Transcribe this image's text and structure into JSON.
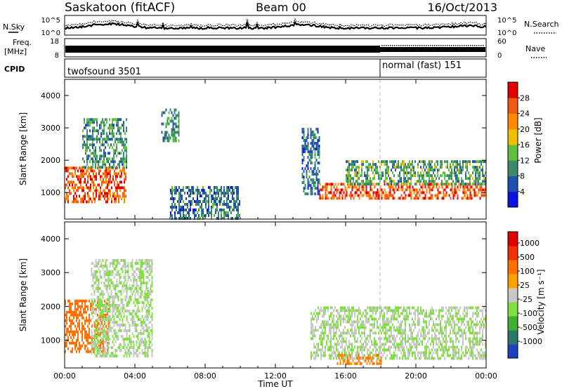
{
  "header": {
    "station": "Saskatoon (fitACF)",
    "beam": "Beam 00",
    "date": "16/Oct/2013"
  },
  "noise_panel": {
    "left_label": "N.Sky",
    "right_label": "N.Search",
    "tick_top": "10^5",
    "tick_bottom": "10^0"
  },
  "freq_panel": {
    "left_label_1": "Freq.",
    "left_label_2": "[MHz]",
    "tick_top": "18",
    "tick_bottom": "8",
    "right_label": "Nave",
    "right_tick_top": "60",
    "right_tick_bottom": "0"
  },
  "cpid_panel": {
    "label": "CPID",
    "modes": [
      {
        "name": "twofsound 3501",
        "start_hour": 0
      },
      {
        "name": "normal (fast) 151",
        "start_hour": 18
      }
    ]
  },
  "x_axis": {
    "label": "Time UT",
    "ticks": [
      "00:00",
      "04:00",
      "08:00",
      "12:00",
      "16:00",
      "20:00",
      "00:00"
    ],
    "range_hours": [
      0,
      24
    ]
  },
  "chart_data": [
    {
      "type": "heatmap",
      "title": "",
      "quantity": "Power",
      "ylabel": "Slant Range [km]",
      "ylim": [
        180,
        4500
      ],
      "yticks": [
        "1000",
        "2000",
        "3000",
        "4000"
      ],
      "colorbar_label": "Power [dB]",
      "colorbar_ticks": [
        "4",
        "8",
        "12",
        "16",
        "20",
        "24",
        "28"
      ],
      "colorbar_colors": [
        "#1010e0",
        "#2050b0",
        "#3a8a6a",
        "#5fc040",
        "#f0c000",
        "#ff8a00",
        "#f05a10",
        "#e00000"
      ],
      "regions": [
        {
          "t0": 0.0,
          "t1": 3.5,
          "r0": 700,
          "r1": 1800,
          "value": 26
        },
        {
          "t0": 1.0,
          "t1": 3.5,
          "r0": 1800,
          "r1": 3300,
          "value": 10
        },
        {
          "t0": 5.5,
          "t1": 6.5,
          "r0": 2600,
          "r1": 3600,
          "value": 10
        },
        {
          "t0": 6.0,
          "t1": 10.0,
          "r0": 200,
          "r1": 1200,
          "value": 8
        },
        {
          "t0": 13.5,
          "t1": 14.5,
          "r0": 1000,
          "r1": 3000,
          "value": 8
        },
        {
          "t0": 14.5,
          "t1": 24.0,
          "r0": 800,
          "r1": 1300,
          "value": 26
        },
        {
          "t0": 16.0,
          "t1": 24.0,
          "r0": 1300,
          "r1": 2000,
          "value": 12
        }
      ]
    },
    {
      "type": "heatmap",
      "title": "",
      "quantity": "Velocity",
      "ylabel": "Slant Range [km]",
      "ylim": [
        180,
        4500
      ],
      "yticks": [
        "1000",
        "2000",
        "3000",
        "4000"
      ],
      "colorbar_label": "Velocity [m s⁻¹]",
      "colorbar_ticks": [
        "1000",
        "500",
        "100",
        "25",
        "-25",
        "-100",
        "-500",
        "-1000"
      ],
      "colorbar_colors": [
        "#2040c0",
        "#2a7a6a",
        "#40b030",
        "#80e040",
        "#c8c8c8",
        "#ffa000",
        "#ff7000",
        "#f03000",
        "#e00000"
      ],
      "regions": [
        {
          "t0": 0.0,
          "t1": 2.5,
          "r0": 700,
          "r1": 2200,
          "value": -300
        },
        {
          "t0": 1.5,
          "t1": 5.0,
          "r0": 500,
          "r1": 3400,
          "value": 0
        },
        {
          "t0": 14.0,
          "t1": 24.0,
          "r0": 500,
          "r1": 2000,
          "value": 0
        },
        {
          "t0": 15.5,
          "t1": 18.0,
          "r0": 300,
          "r1": 600,
          "value": -200
        }
      ]
    }
  ]
}
